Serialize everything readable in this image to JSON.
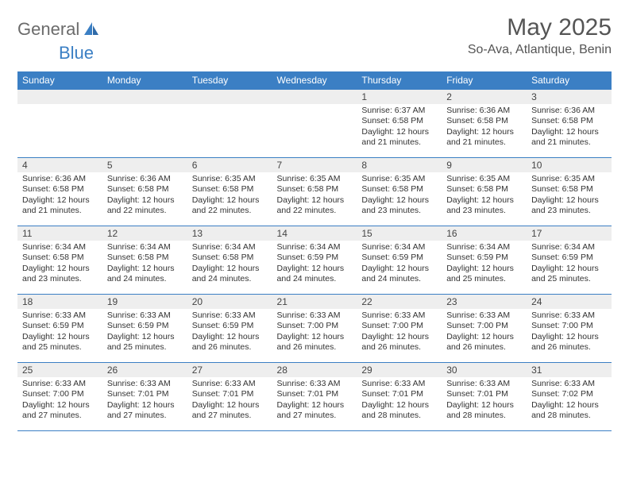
{
  "logo": {
    "general": "General",
    "blue": "Blue"
  },
  "title": "May 2025",
  "location": "So-Ava, Atlantique, Benin",
  "colors": {
    "header_bg": "#3b7fc4",
    "header_text": "#ffffff",
    "daynum_bg": "#eeeeee",
    "border": "#3b7fc4",
    "title_text": "#555555",
    "body_text": "#333333"
  },
  "daynames": [
    "Sunday",
    "Monday",
    "Tuesday",
    "Wednesday",
    "Thursday",
    "Friday",
    "Saturday"
  ],
  "weeks": [
    [
      null,
      null,
      null,
      null,
      {
        "n": "1",
        "sr": "Sunrise: 6:37 AM",
        "ss": "Sunset: 6:58 PM",
        "dl1": "Daylight: 12 hours",
        "dl2": "and 21 minutes."
      },
      {
        "n": "2",
        "sr": "Sunrise: 6:36 AM",
        "ss": "Sunset: 6:58 PM",
        "dl1": "Daylight: 12 hours",
        "dl2": "and 21 minutes."
      },
      {
        "n": "3",
        "sr": "Sunrise: 6:36 AM",
        "ss": "Sunset: 6:58 PM",
        "dl1": "Daylight: 12 hours",
        "dl2": "and 21 minutes."
      }
    ],
    [
      {
        "n": "4",
        "sr": "Sunrise: 6:36 AM",
        "ss": "Sunset: 6:58 PM",
        "dl1": "Daylight: 12 hours",
        "dl2": "and 21 minutes."
      },
      {
        "n": "5",
        "sr": "Sunrise: 6:36 AM",
        "ss": "Sunset: 6:58 PM",
        "dl1": "Daylight: 12 hours",
        "dl2": "and 22 minutes."
      },
      {
        "n": "6",
        "sr": "Sunrise: 6:35 AM",
        "ss": "Sunset: 6:58 PM",
        "dl1": "Daylight: 12 hours",
        "dl2": "and 22 minutes."
      },
      {
        "n": "7",
        "sr": "Sunrise: 6:35 AM",
        "ss": "Sunset: 6:58 PM",
        "dl1": "Daylight: 12 hours",
        "dl2": "and 22 minutes."
      },
      {
        "n": "8",
        "sr": "Sunrise: 6:35 AM",
        "ss": "Sunset: 6:58 PM",
        "dl1": "Daylight: 12 hours",
        "dl2": "and 23 minutes."
      },
      {
        "n": "9",
        "sr": "Sunrise: 6:35 AM",
        "ss": "Sunset: 6:58 PM",
        "dl1": "Daylight: 12 hours",
        "dl2": "and 23 minutes."
      },
      {
        "n": "10",
        "sr": "Sunrise: 6:35 AM",
        "ss": "Sunset: 6:58 PM",
        "dl1": "Daylight: 12 hours",
        "dl2": "and 23 minutes."
      }
    ],
    [
      {
        "n": "11",
        "sr": "Sunrise: 6:34 AM",
        "ss": "Sunset: 6:58 PM",
        "dl1": "Daylight: 12 hours",
        "dl2": "and 23 minutes."
      },
      {
        "n": "12",
        "sr": "Sunrise: 6:34 AM",
        "ss": "Sunset: 6:58 PM",
        "dl1": "Daylight: 12 hours",
        "dl2": "and 24 minutes."
      },
      {
        "n": "13",
        "sr": "Sunrise: 6:34 AM",
        "ss": "Sunset: 6:58 PM",
        "dl1": "Daylight: 12 hours",
        "dl2": "and 24 minutes."
      },
      {
        "n": "14",
        "sr": "Sunrise: 6:34 AM",
        "ss": "Sunset: 6:59 PM",
        "dl1": "Daylight: 12 hours",
        "dl2": "and 24 minutes."
      },
      {
        "n": "15",
        "sr": "Sunrise: 6:34 AM",
        "ss": "Sunset: 6:59 PM",
        "dl1": "Daylight: 12 hours",
        "dl2": "and 24 minutes."
      },
      {
        "n": "16",
        "sr": "Sunrise: 6:34 AM",
        "ss": "Sunset: 6:59 PM",
        "dl1": "Daylight: 12 hours",
        "dl2": "and 25 minutes."
      },
      {
        "n": "17",
        "sr": "Sunrise: 6:34 AM",
        "ss": "Sunset: 6:59 PM",
        "dl1": "Daylight: 12 hours",
        "dl2": "and 25 minutes."
      }
    ],
    [
      {
        "n": "18",
        "sr": "Sunrise: 6:33 AM",
        "ss": "Sunset: 6:59 PM",
        "dl1": "Daylight: 12 hours",
        "dl2": "and 25 minutes."
      },
      {
        "n": "19",
        "sr": "Sunrise: 6:33 AM",
        "ss": "Sunset: 6:59 PM",
        "dl1": "Daylight: 12 hours",
        "dl2": "and 25 minutes."
      },
      {
        "n": "20",
        "sr": "Sunrise: 6:33 AM",
        "ss": "Sunset: 6:59 PM",
        "dl1": "Daylight: 12 hours",
        "dl2": "and 26 minutes."
      },
      {
        "n": "21",
        "sr": "Sunrise: 6:33 AM",
        "ss": "Sunset: 7:00 PM",
        "dl1": "Daylight: 12 hours",
        "dl2": "and 26 minutes."
      },
      {
        "n": "22",
        "sr": "Sunrise: 6:33 AM",
        "ss": "Sunset: 7:00 PM",
        "dl1": "Daylight: 12 hours",
        "dl2": "and 26 minutes."
      },
      {
        "n": "23",
        "sr": "Sunrise: 6:33 AM",
        "ss": "Sunset: 7:00 PM",
        "dl1": "Daylight: 12 hours",
        "dl2": "and 26 minutes."
      },
      {
        "n": "24",
        "sr": "Sunrise: 6:33 AM",
        "ss": "Sunset: 7:00 PM",
        "dl1": "Daylight: 12 hours",
        "dl2": "and 26 minutes."
      }
    ],
    [
      {
        "n": "25",
        "sr": "Sunrise: 6:33 AM",
        "ss": "Sunset: 7:00 PM",
        "dl1": "Daylight: 12 hours",
        "dl2": "and 27 minutes."
      },
      {
        "n": "26",
        "sr": "Sunrise: 6:33 AM",
        "ss": "Sunset: 7:01 PM",
        "dl1": "Daylight: 12 hours",
        "dl2": "and 27 minutes."
      },
      {
        "n": "27",
        "sr": "Sunrise: 6:33 AM",
        "ss": "Sunset: 7:01 PM",
        "dl1": "Daylight: 12 hours",
        "dl2": "and 27 minutes."
      },
      {
        "n": "28",
        "sr": "Sunrise: 6:33 AM",
        "ss": "Sunset: 7:01 PM",
        "dl1": "Daylight: 12 hours",
        "dl2": "and 27 minutes."
      },
      {
        "n": "29",
        "sr": "Sunrise: 6:33 AM",
        "ss": "Sunset: 7:01 PM",
        "dl1": "Daylight: 12 hours",
        "dl2": "and 28 minutes."
      },
      {
        "n": "30",
        "sr": "Sunrise: 6:33 AM",
        "ss": "Sunset: 7:01 PM",
        "dl1": "Daylight: 12 hours",
        "dl2": "and 28 minutes."
      },
      {
        "n": "31",
        "sr": "Sunrise: 6:33 AM",
        "ss": "Sunset: 7:02 PM",
        "dl1": "Daylight: 12 hours",
        "dl2": "and 28 minutes."
      }
    ]
  ]
}
